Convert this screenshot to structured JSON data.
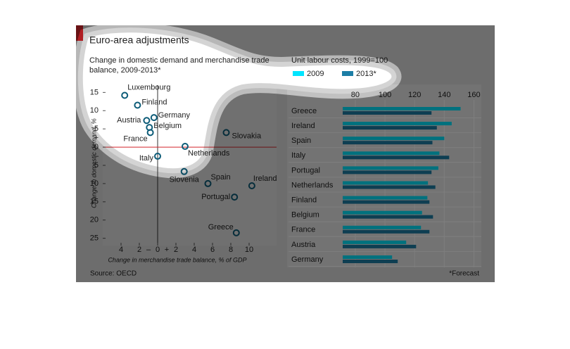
{
  "header": {
    "title": "Euro-area adjustments",
    "source": "Source: OECD",
    "footnote": "*Forecast"
  },
  "chart_data": [
    {
      "type": "scatter",
      "title": "Change in domestic demand and merchandise trade balance, 2009-2013*",
      "xlabel": "Change in merchandise trade balance, % of GDP",
      "ylabel": "Change in domestic demand, %",
      "labels": [
        "Luxembourg",
        "Finland",
        "Austria",
        "Germany",
        "Belgium",
        "France",
        "Slovakia",
        "Netherlands",
        "Italy",
        "Slovenia",
        "Spain",
        "Ireland",
        "Portugal",
        "Greece"
      ],
      "x": [
        -3.6,
        -2.2,
        -1.2,
        -0.4,
        -0.9,
        -0.8,
        7.5,
        3.0,
        0,
        2.9,
        5.5,
        10.3,
        8.4,
        8.6
      ],
      "y": [
        14.2,
        11.5,
        7.3,
        8.1,
        5.4,
        4.0,
        4.0,
        0.2,
        -2.5,
        -6.7,
        -10,
        -10.6,
        -13.7,
        -23.5
      ],
      "color": "#0d5c78",
      "xlim": [
        -6,
        13
      ],
      "ylim": [
        -27,
        17
      ],
      "xticks": [
        {
          "value": -4,
          "label": "4"
        },
        {
          "value": -2,
          "label": "2"
        },
        0,
        2,
        4,
        6,
        8,
        10
      ],
      "yticks": [
        15,
        10,
        5,
        0,
        {
          "value": -5,
          "label": "5"
        },
        {
          "value": -10,
          "label": "10"
        },
        {
          "value": -15,
          "label": "15"
        },
        {
          "value": -20,
          "label": "20"
        },
        {
          "value": -25,
          "label": "25"
        }
      ],
      "x_sign_labels": [
        "–",
        "+"
      ],
      "y_sign_labels": [
        "+",
        "–"
      ]
    },
    {
      "type": "bar",
      "orientation": "horizontal",
      "title": "Unit labour costs, 1999=100",
      "categories": [
        "Greece",
        "Ireland",
        "Spain",
        "Italy",
        "Portugal",
        "Netherlands",
        "Finland",
        "Belgium",
        "France",
        "Austria",
        "Germany"
      ],
      "series": [
        {
          "name": "2009",
          "color": "#00e5ff",
          "values": [
            151,
            145,
            140,
            136.7,
            136,
            129,
            128.6,
            125,
            124.3,
            114.3,
            104.8
          ]
        },
        {
          "name": "2013*",
          "color": "#1d7ea6",
          "values": [
            131.4,
            135,
            132,
            143.3,
            131.4,
            134,
            130,
            132.4,
            130,
            121,
            108.6
          ]
        }
      ],
      "xlim": [
        71.5,
        165
      ],
      "xticks": [
        80,
        100,
        120,
        140,
        160
      ],
      "grid": true
    }
  ]
}
